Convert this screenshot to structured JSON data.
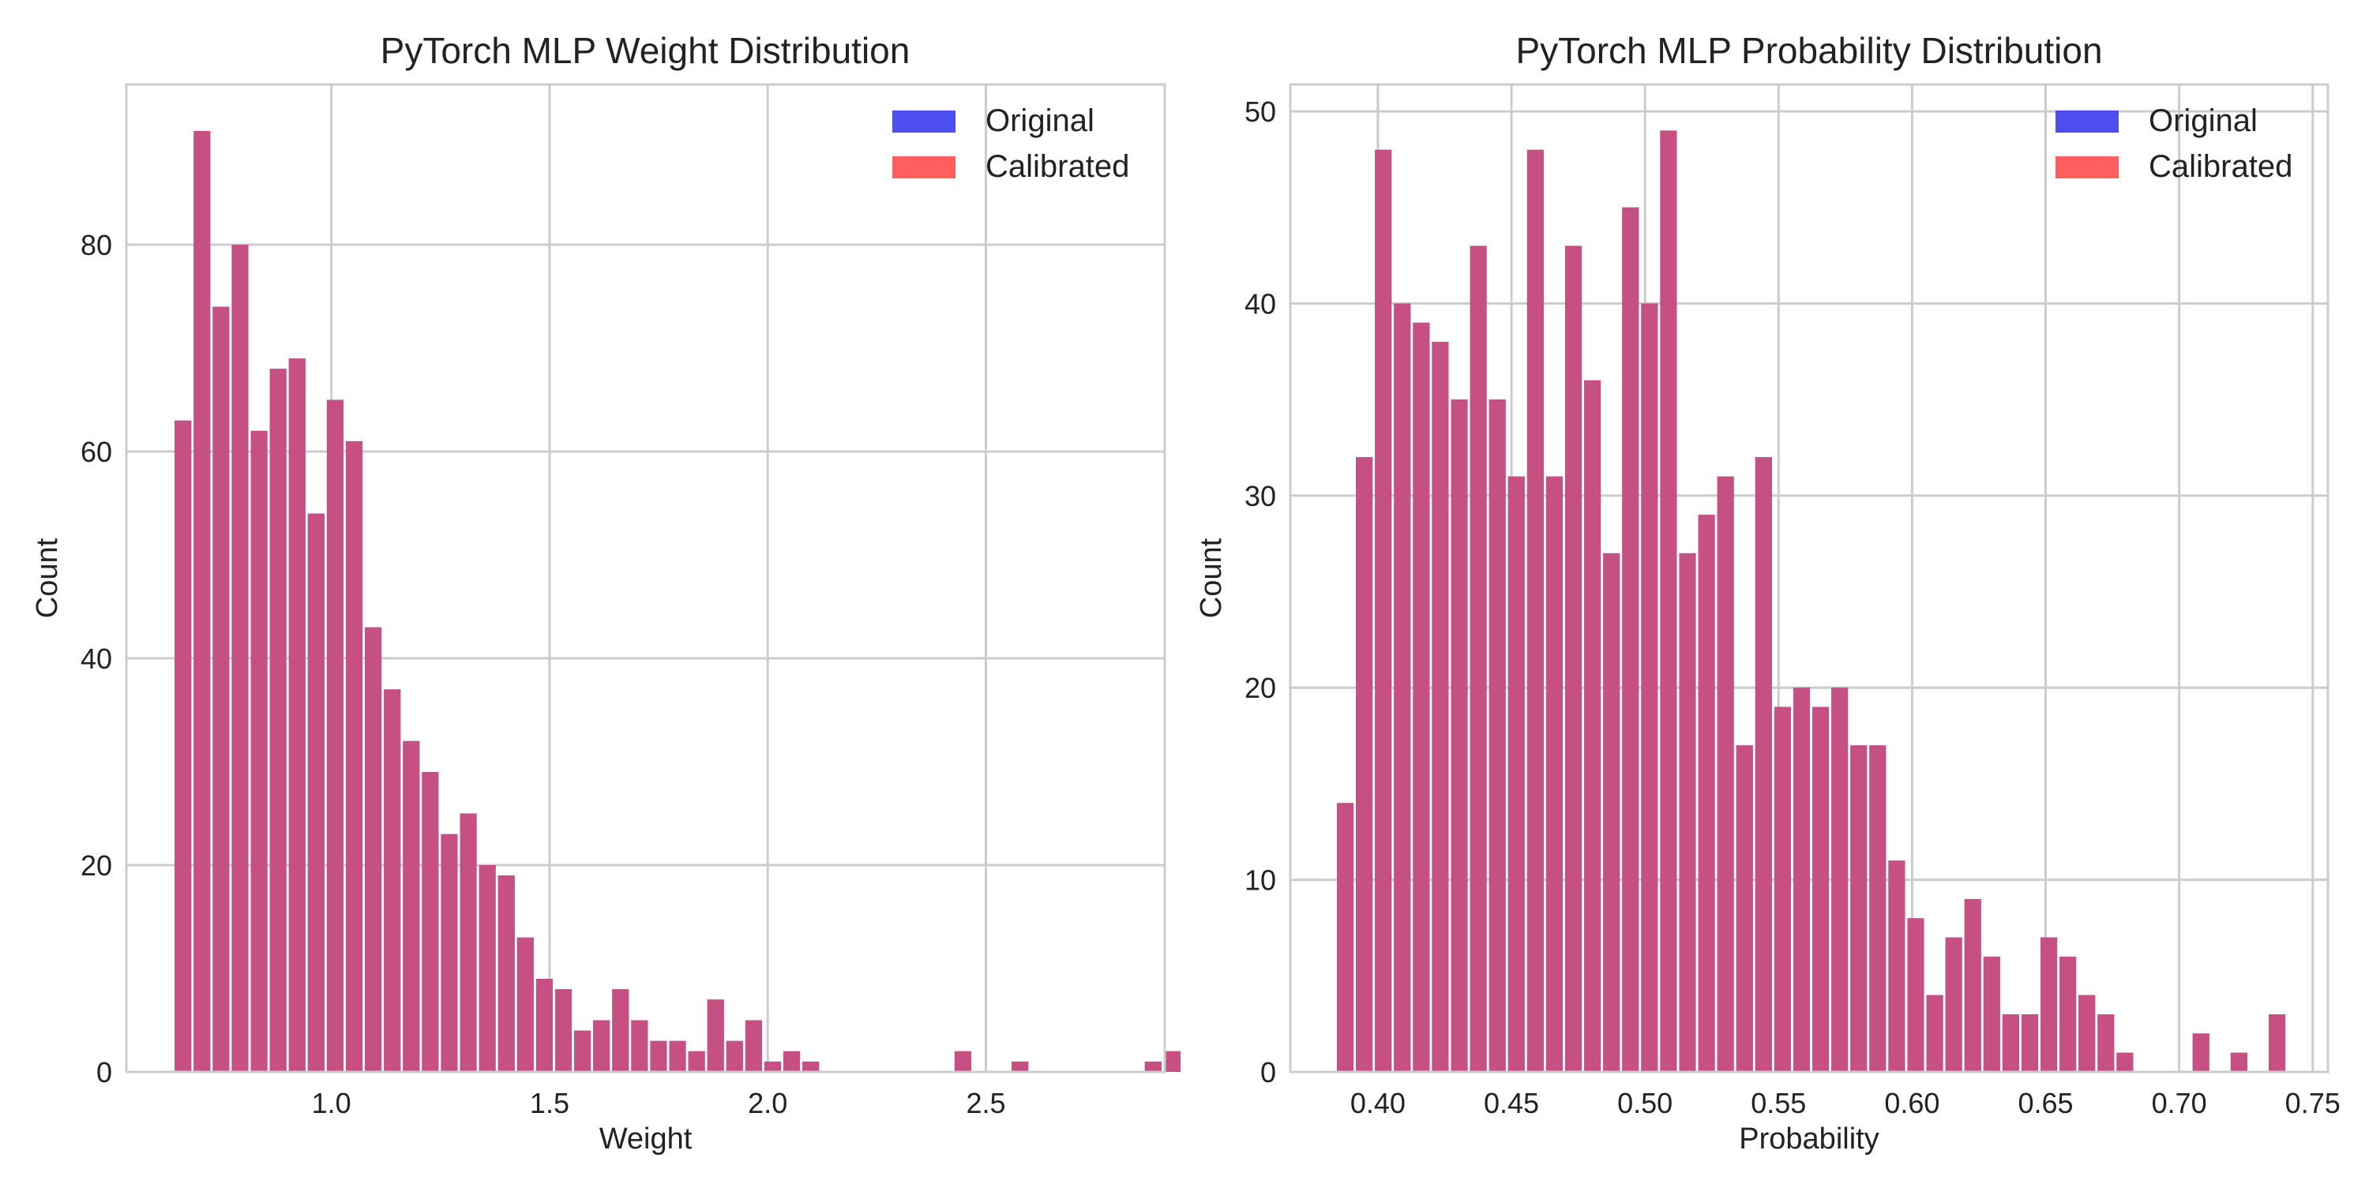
{
  "colors": {
    "original": "#4444ee",
    "calibrated": "#ff5555",
    "bar_overlap": "#cc1a4a",
    "grid": "#cccccc",
    "frame": "#cccccc"
  },
  "chart_data": [
    {
      "type": "bar",
      "title": "PyTorch MLP Weight Distribution",
      "xlabel": "Weight",
      "ylabel": "Count",
      "xlim": [
        0.53,
        2.91
      ],
      "ylim": [
        0,
        95.5
      ],
      "xticks": [
        1.0,
        1.5,
        2.0,
        2.5
      ],
      "xtick_labels": [
        "1.0",
        "1.5",
        "2.0",
        "2.5"
      ],
      "yticks": [
        0,
        20,
        40,
        60,
        80
      ],
      "ytick_labels": [
        "0",
        "20",
        "40",
        "60",
        "80"
      ],
      "grid": true,
      "legend_position": "top-right",
      "bin_start": 0.638,
      "bin_width": 0.0436,
      "series": [
        {
          "name": "Original",
          "values": [
            63,
            91,
            74,
            80,
            62,
            68,
            69,
            54,
            65,
            61,
            43,
            37,
            32,
            29,
            23,
            25,
            20,
            19,
            13,
            9,
            8,
            4,
            5,
            8,
            5,
            3,
            3,
            2,
            7,
            3,
            5,
            1,
            2,
            1,
            0,
            0,
            0,
            0,
            0,
            0,
            0,
            2,
            0,
            0,
            1,
            0,
            0,
            0,
            0,
            0,
            0,
            1,
            2
          ]
        },
        {
          "name": "Calibrated",
          "values": [
            63,
            91,
            74,
            80,
            62,
            68,
            69,
            54,
            65,
            61,
            43,
            37,
            32,
            29,
            23,
            25,
            20,
            19,
            13,
            9,
            8,
            4,
            5,
            8,
            5,
            3,
            3,
            2,
            7,
            3,
            5,
            1,
            2,
            1,
            0,
            0,
            0,
            0,
            0,
            0,
            0,
            2,
            0,
            0,
            1,
            0,
            0,
            0,
            0,
            0,
            0,
            1,
            2
          ]
        }
      ]
    },
    {
      "type": "bar",
      "title": "PyTorch MLP Probability Distribution",
      "xlabel": "Probability",
      "ylabel": "Count",
      "xlim": [
        0.3672,
        0.7557
      ],
      "ylim": [
        0,
        51.4
      ],
      "xticks": [
        0.4,
        0.45,
        0.5,
        0.55,
        0.6,
        0.65,
        0.7,
        0.75
      ],
      "xtick_labels": [
        "0.40",
        "0.45",
        "0.50",
        "0.55",
        "0.60",
        "0.65",
        "0.70",
        "0.75"
      ],
      "yticks": [
        0,
        10,
        20,
        30,
        40,
        50
      ],
      "ytick_labels": [
        "0",
        "10",
        "20",
        "30",
        "40",
        "50"
      ],
      "grid": true,
      "legend_position": "top-right",
      "bin_start": 0.3842,
      "bin_width": 0.00712,
      "series": [
        {
          "name": "Original",
          "values": [
            14,
            32,
            48,
            40,
            39,
            38,
            35,
            43,
            35,
            31,
            48,
            31,
            43,
            36,
            27,
            45,
            40,
            49,
            27,
            29,
            31,
            17,
            32,
            19,
            20,
            19,
            20,
            17,
            17,
            11,
            8,
            4,
            7,
            9,
            6,
            3,
            3,
            7,
            6,
            4,
            3,
            1,
            0,
            0,
            0,
            2,
            0,
            1,
            0,
            3
          ]
        },
        {
          "name": "Calibrated",
          "values": [
            14,
            32,
            48,
            40,
            39,
            38,
            35,
            43,
            35,
            31,
            48,
            31,
            43,
            36,
            27,
            45,
            40,
            49,
            27,
            29,
            31,
            17,
            32,
            19,
            20,
            19,
            20,
            17,
            17,
            11,
            8,
            4,
            7,
            9,
            6,
            3,
            3,
            7,
            6,
            4,
            3,
            1,
            0,
            0,
            0,
            2,
            0,
            1,
            0,
            3
          ]
        }
      ]
    }
  ]
}
